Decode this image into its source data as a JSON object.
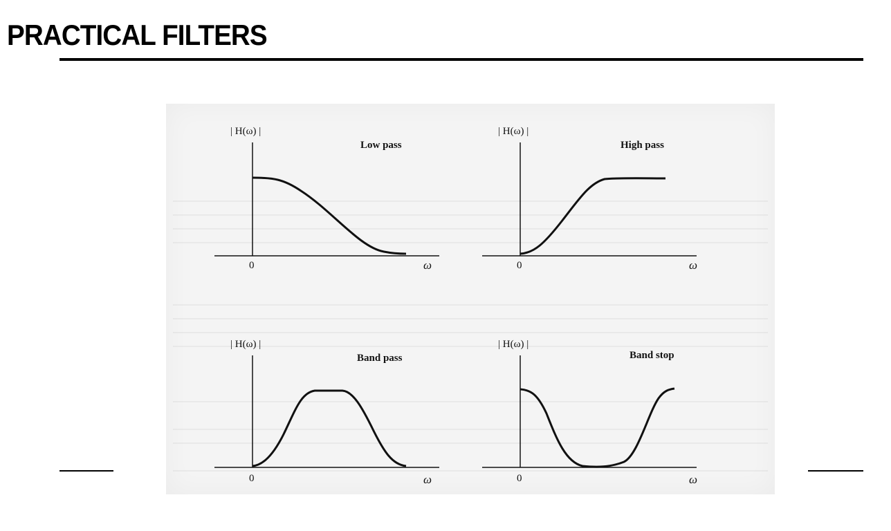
{
  "title": "PRACTICAL FILTERS",
  "figure": {
    "y_label": "| H(ω) |",
    "x_label": "ω",
    "origin_tick": "0",
    "panels": [
      {
        "name": "Low pass"
      },
      {
        "name": "High pass"
      },
      {
        "name": "Band pass"
      },
      {
        "name": "Band stop"
      }
    ]
  }
}
